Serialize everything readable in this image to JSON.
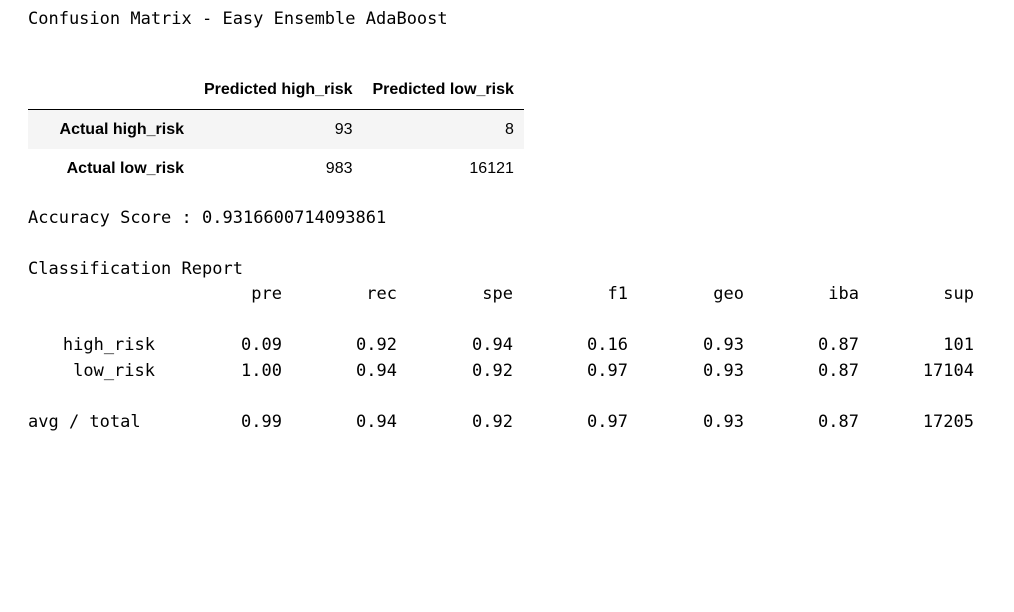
{
  "title": "Confusion Matrix - Easy Ensemble AdaBoost",
  "confusion_table": {
    "columns": [
      "Predicted high_risk",
      "Predicted low_risk"
    ],
    "rows": [
      {
        "label": "Actual high_risk",
        "values": [
          "93",
          "8"
        ]
      },
      {
        "label": "Actual low_risk",
        "values": [
          "983",
          "16121"
        ]
      }
    ]
  },
  "accuracy": {
    "label": "Accuracy Score :",
    "value": "0.9316600714093861"
  },
  "report": {
    "title": "Classification Report",
    "headers": [
      "pre",
      "rec",
      "spe",
      "f1",
      "geo",
      "iba",
      "sup"
    ],
    "rows": [
      {
        "label": "high_risk",
        "values": [
          "0.09",
          "0.92",
          "0.94",
          "0.16",
          "0.93",
          "0.87",
          "101"
        ]
      },
      {
        "label": "low_risk",
        "values": [
          "1.00",
          "0.94",
          "0.92",
          "0.97",
          "0.93",
          "0.87",
          "17104"
        ]
      }
    ],
    "total": {
      "label": "avg / total",
      "values": [
        "0.99",
        "0.94",
        "0.92",
        "0.97",
        "0.93",
        "0.87",
        "17205"
      ]
    }
  }
}
